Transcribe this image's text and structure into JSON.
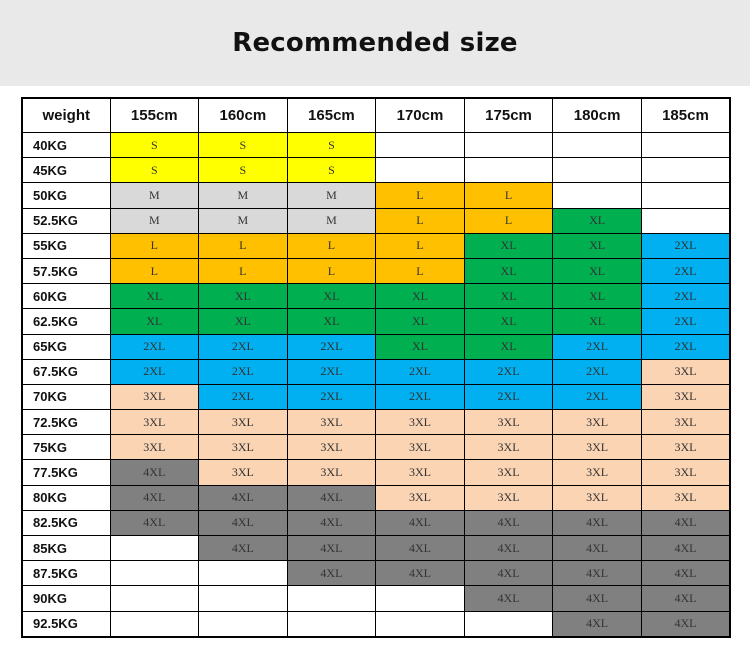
{
  "title": "Recommended size",
  "table": {
    "corner_header": "weight",
    "heights": [
      "155cm",
      "160cm",
      "165cm",
      "170cm",
      "175cm",
      "180cm",
      "185cm"
    ],
    "size_colors": {
      "S": "#ffff00",
      "M": "#d9d9d9",
      "L": "#ffc000",
      "XL": "#00b050",
      "2XL": "#00b0f0",
      "3XL": "#fbd4b4",
      "4XL": "#808080"
    },
    "rows": [
      {
        "weight": "40KG",
        "sizes": [
          "S",
          "S",
          "S",
          "",
          "",
          "",
          ""
        ]
      },
      {
        "weight": "45KG",
        "sizes": [
          "S",
          "S",
          "S",
          "",
          "",
          "",
          ""
        ]
      },
      {
        "weight": "50KG",
        "sizes": [
          "M",
          "M",
          "M",
          "L",
          "L",
          "",
          ""
        ]
      },
      {
        "weight": "52.5KG",
        "sizes": [
          "M",
          "M",
          "M",
          "L",
          "L",
          "XL",
          ""
        ]
      },
      {
        "weight": "55KG",
        "sizes": [
          "L",
          "L",
          "L",
          "L",
          "XL",
          "XL",
          "2XL"
        ]
      },
      {
        "weight": "57.5KG",
        "sizes": [
          "L",
          "L",
          "L",
          "L",
          "XL",
          "XL",
          "2XL"
        ]
      },
      {
        "weight": "60KG",
        "sizes": [
          "XL",
          "XL",
          "XL",
          "XL",
          "XL",
          "XL",
          "2XL"
        ]
      },
      {
        "weight": "62.5KG",
        "sizes": [
          "XL",
          "XL",
          "XL",
          "XL",
          "XL",
          "XL",
          "2XL"
        ]
      },
      {
        "weight": "65KG",
        "sizes": [
          "2XL",
          "2XL",
          "2XL",
          "XL",
          "XL",
          "2XL",
          "2XL"
        ]
      },
      {
        "weight": "67.5KG",
        "sizes": [
          "2XL",
          "2XL",
          "2XL",
          "2XL",
          "2XL",
          "2XL",
          "3XL"
        ]
      },
      {
        "weight": "70KG",
        "sizes": [
          "3XL",
          "2XL",
          "2XL",
          "2XL",
          "2XL",
          "2XL",
          "3XL"
        ]
      },
      {
        "weight": "72.5KG",
        "sizes": [
          "3XL",
          "3XL",
          "3XL",
          "3XL",
          "3XL",
          "3XL",
          "3XL"
        ]
      },
      {
        "weight": "75KG",
        "sizes": [
          "3XL",
          "3XL",
          "3XL",
          "3XL",
          "3XL",
          "3XL",
          "3XL"
        ]
      },
      {
        "weight": "77.5KG",
        "sizes": [
          "4XL",
          "3XL",
          "3XL",
          "3XL",
          "3XL",
          "3XL",
          "3XL"
        ]
      },
      {
        "weight": "80KG",
        "sizes": [
          "4XL",
          "4XL",
          "4XL",
          "3XL",
          "3XL",
          "3XL",
          "3XL"
        ]
      },
      {
        "weight": "82.5KG",
        "sizes": [
          "4XL",
          "4XL",
          "4XL",
          "4XL",
          "4XL",
          "4XL",
          "4XL"
        ]
      },
      {
        "weight": "85KG",
        "sizes": [
          "",
          "4XL",
          "4XL",
          "4XL",
          "4XL",
          "4XL",
          "4XL"
        ]
      },
      {
        "weight": "87.5KG",
        "sizes": [
          "",
          "",
          "4XL",
          "4XL",
          "4XL",
          "4XL",
          "4XL"
        ]
      },
      {
        "weight": "90KG",
        "sizes": [
          "",
          "",
          "",
          "",
          "4XL",
          "4XL",
          "4XL"
        ]
      },
      {
        "weight": "92.5KG",
        "sizes": [
          "",
          "",
          "",
          "",
          "",
          "4XL",
          "4XL"
        ]
      }
    ]
  }
}
